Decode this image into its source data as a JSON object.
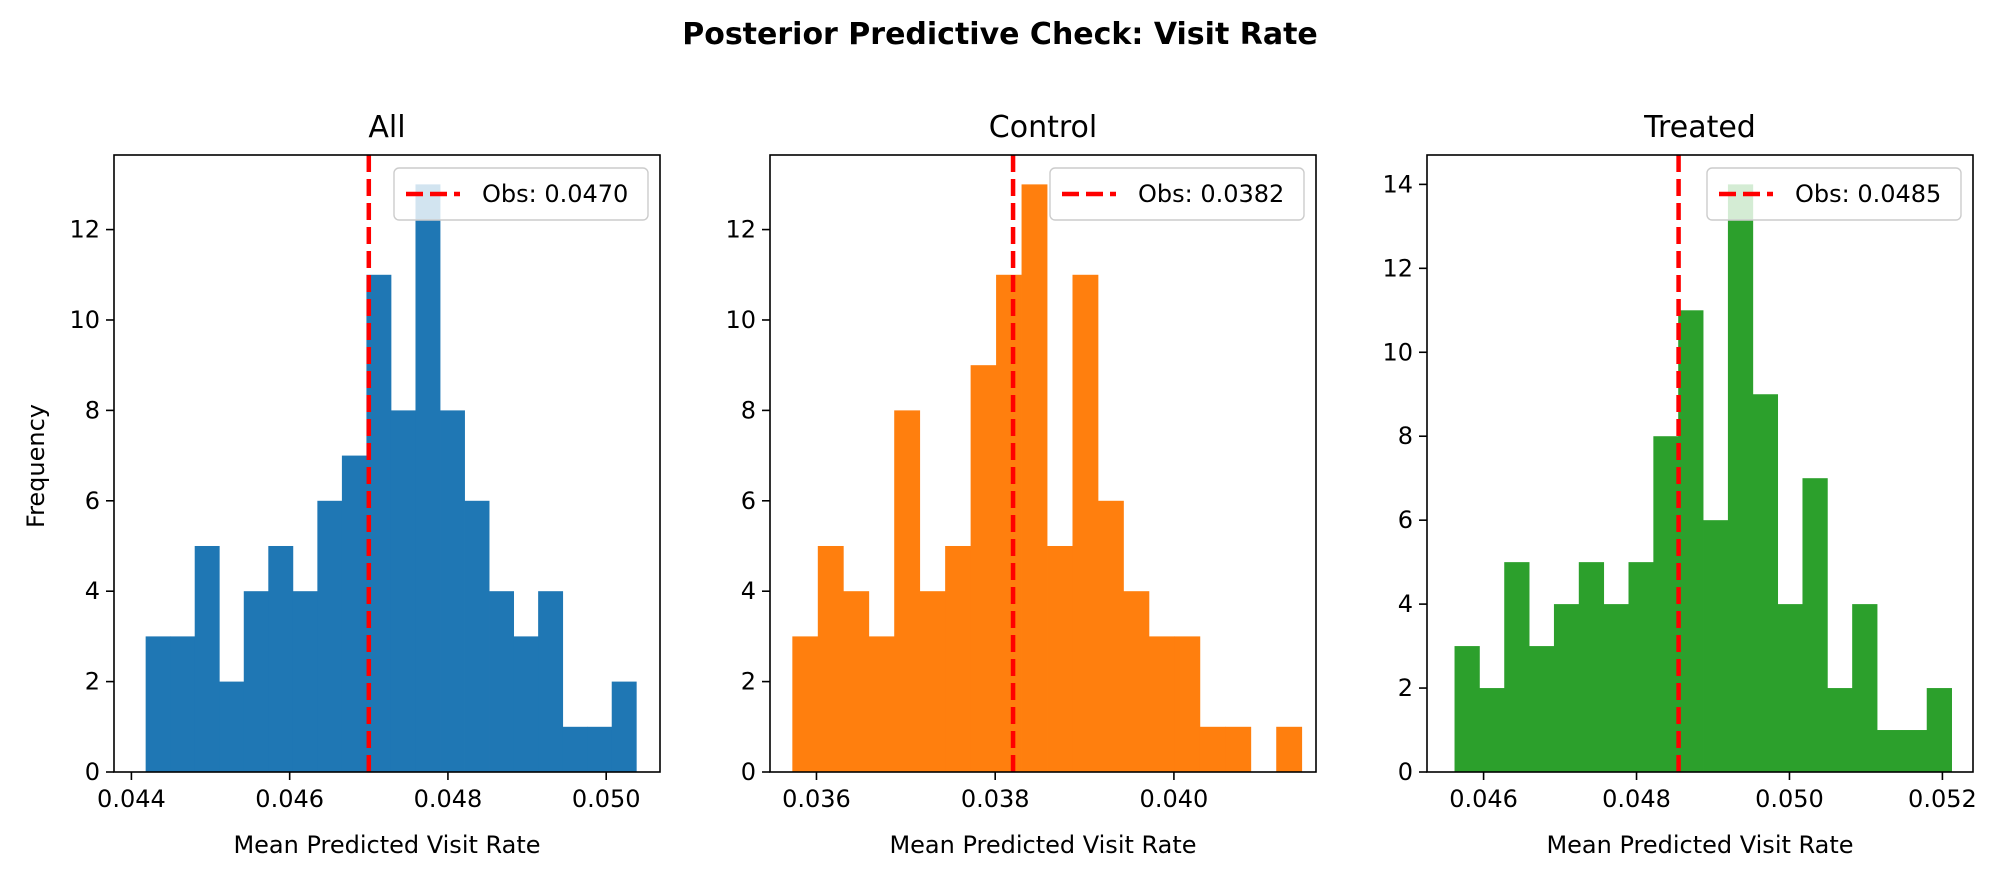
{
  "suptitle": "Posterior Predictive Check: Visit Rate",
  "chart_data": [
    {
      "type": "bar",
      "title": "All",
      "xlabel": "Mean Predicted Visit Rate",
      "ylabel": "Frequency",
      "color": "#1f77b4",
      "bin_start": 0.04418,
      "bin_width": 0.00031,
      "counts": [
        3,
        3,
        5,
        2,
        4,
        5,
        4,
        6,
        7,
        11,
        8,
        13,
        8,
        6,
        4,
        3,
        4,
        1,
        1,
        2
      ],
      "xlim": [
        0.04378,
        0.05068
      ],
      "ylim": [
        0,
        13.65
      ],
      "xticks": [
        0.044,
        0.046,
        0.048,
        0.05
      ],
      "xtick_labels": [
        "0.044",
        "0.046",
        "0.048",
        "0.050"
      ],
      "yticks": [
        0,
        2,
        4,
        6,
        8,
        10,
        12
      ],
      "obs_value": 0.047,
      "legend_label": "Obs: 0.0470",
      "legend_position": "upper right"
    },
    {
      "type": "bar",
      "title": "Control",
      "xlabel": "Mean Predicted Visit Rate",
      "ylabel": "",
      "color": "#ff7f0e",
      "bin_start": 0.03573,
      "bin_width": 0.000285,
      "counts": [
        3,
        5,
        4,
        3,
        8,
        4,
        5,
        9,
        11,
        13,
        5,
        11,
        6,
        4,
        3,
        3,
        1,
        1,
        0,
        1
      ],
      "xlim": [
        0.03548,
        0.04159
      ],
      "ylim": [
        0,
        13.65
      ],
      "xticks": [
        0.036,
        0.038,
        0.04
      ],
      "xtick_labels": [
        "0.036",
        "0.038",
        "0.040"
      ],
      "yticks": [
        0,
        2,
        4,
        6,
        8,
        10,
        12
      ],
      "obs_value": 0.0382,
      "legend_label": "Obs: 0.0382",
      "legend_position": "upper right"
    },
    {
      "type": "bar",
      "title": "Treated",
      "xlabel": "Mean Predicted Visit Rate",
      "ylabel": "",
      "color": "#2ca02c",
      "bin_start": 0.04562,
      "bin_width": 0.000325,
      "counts": [
        3,
        2,
        5,
        3,
        4,
        5,
        4,
        5,
        8,
        11,
        6,
        14,
        9,
        4,
        7,
        2,
        4,
        1,
        1,
        2
      ],
      "xlim": [
        0.04526,
        0.0524
      ],
      "ylim": [
        0,
        14.7
      ],
      "xticks": [
        0.046,
        0.048,
        0.05,
        0.052
      ],
      "xtick_labels": [
        "0.046",
        "0.048",
        "0.050",
        "0.052"
      ],
      "yticks": [
        0,
        2,
        4,
        6,
        8,
        10,
        12,
        14
      ],
      "obs_value": 0.04855,
      "legend_label": "Obs: 0.0485",
      "legend_position": "upper right"
    }
  ]
}
